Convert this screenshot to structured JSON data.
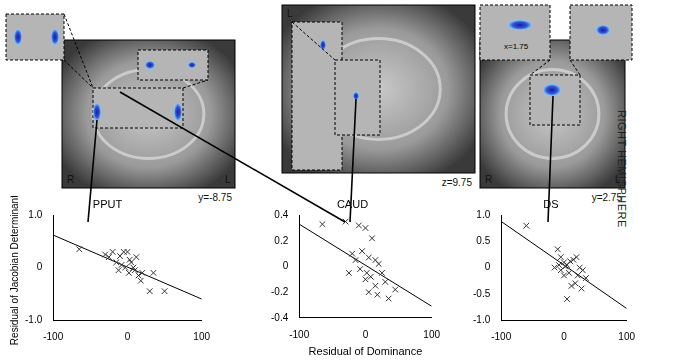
{
  "figure": {
    "side_label": "RIGHT HEMISPHERE",
    "panels": [
      {
        "orientation_labels": [
          "R",
          "L"
        ],
        "coordinate": "y=-8.75"
      },
      {
        "orientation_labels": [
          "L"
        ],
        "coordinate": "z=9.75"
      },
      {
        "orientation_labels": [
          "R",
          "L"
        ],
        "coordinate": "y=2.75",
        "inset_coordinate": "x=1.75"
      }
    ]
  },
  "chart_data": [
    {
      "type": "scatter",
      "title": "PPUT",
      "y_label": "Residual of Jacobian Determinants",
      "xlim": [
        -100,
        100
      ],
      "xticks": [
        -100,
        0,
        100
      ],
      "ylim": [
        -1,
        1
      ],
      "yticks": [
        {
          "value": -1,
          "label": "-1.0"
        },
        0,
        {
          "value": 1,
          "label": "1.0"
        }
      ],
      "grid": false,
      "marker": "x",
      "color": "#333333",
      "x": [
        -65,
        -30,
        -25,
        -20,
        -15,
        -10,
        -8,
        -5,
        0,
        2,
        5,
        8,
        10,
        12,
        15,
        3,
        -3,
        20,
        30,
        35,
        50,
        18,
        -12
      ],
      "values": [
        0.35,
        0.25,
        0.2,
        0.3,
        0.1,
        0.22,
        0.05,
        0.3,
        0.3,
        -0.1,
        0.1,
        0.0,
        -0.05,
        0.2,
        -0.15,
        0.15,
        0.0,
        -0.1,
        -0.45,
        -0.1,
        -0.45,
        -0.25,
        -0.05
      ],
      "fit": {
        "x": [
          -100,
          100
        ],
        "values": [
          0.62,
          -0.6
        ]
      }
    },
    {
      "type": "scatter",
      "title": "CAUD",
      "x_label": "Residual of Dominance",
      "xlim": [
        -100,
        100
      ],
      "xticks": [
        -100,
        0,
        100
      ],
      "ylim": [
        -0.4,
        0.4
      ],
      "yticks": [
        -0.4,
        -0.2,
        0,
        0.2,
        0.4
      ],
      "grid": false,
      "marker": "x",
      "color": "#333333",
      "x": [
        -65,
        -30,
        -10,
        0,
        10,
        -20,
        -15,
        -5,
        5,
        15,
        20,
        -8,
        2,
        8,
        25,
        30,
        35,
        45,
        15,
        0,
        -25,
        18,
        5
      ],
      "values": [
        0.33,
        0.35,
        0.32,
        0.3,
        0.22,
        0.1,
        0.05,
        0.12,
        0.07,
        0.05,
        0.02,
        -0.02,
        -0.05,
        -0.08,
        -0.05,
        -0.12,
        -0.25,
        -0.18,
        -0.15,
        -0.1,
        -0.05,
        -0.22,
        -0.2
      ],
      "fit": {
        "x": [
          -100,
          100
        ],
        "values": [
          0.33,
          -0.31
        ]
      }
    },
    {
      "type": "scatter",
      "title": "DS",
      "xlim": [
        -100,
        100
      ],
      "xticks": [
        -100,
        0,
        100
      ],
      "ylim": [
        -1,
        1
      ],
      "yticks": [
        {
          "value": -1,
          "label": "-1.0"
        },
        {
          "value": -0.5,
          "label": "-0.5"
        },
        0,
        0.5,
        {
          "value": 1,
          "label": "1.0"
        }
      ],
      "grid": false,
      "marker": "x",
      "color": "#333333",
      "x": [
        -60,
        -10,
        -5,
        0,
        5,
        10,
        -15,
        -8,
        2,
        8,
        15,
        20,
        25,
        30,
        18,
        12,
        5,
        28,
        35,
        0,
        -5,
        22
      ],
      "values": [
        0.8,
        0.35,
        0.2,
        0.1,
        0.05,
        0.12,
        0.0,
        0.05,
        0.02,
        -0.1,
        0.15,
        0.2,
        0.0,
        -0.05,
        -0.3,
        -0.35,
        -0.6,
        -0.4,
        -0.2,
        -0.15,
        -0.05,
        -0.15
      ],
      "fit": {
        "x": [
          -100,
          100
        ],
        "values": [
          0.88,
          -0.78
        ]
      }
    }
  ]
}
